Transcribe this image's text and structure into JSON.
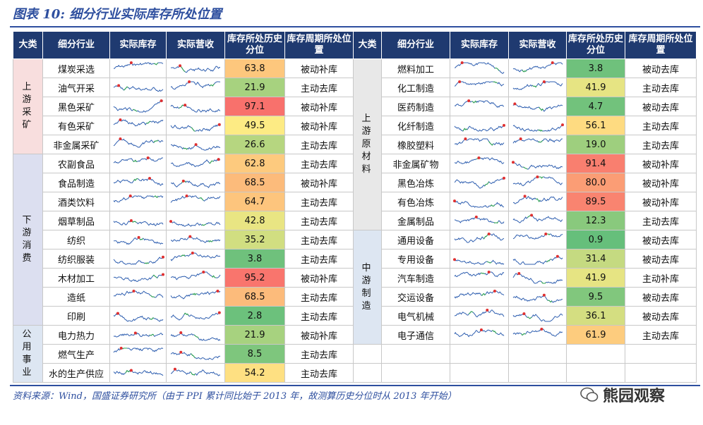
{
  "header": {
    "title": "图表 10:  细分行业实际库存所处位置"
  },
  "table": {
    "columns": [
      "大类",
      "细分行业",
      "实际库存",
      "实际营收",
      "库存所处历史分位",
      "库存周期所处位置",
      "大类",
      "细分行业",
      "实际库存",
      "实际营收",
      "库存所处历史分位",
      "库存周期所处位置"
    ],
    "left_groups": [
      {
        "name": "上游采矿",
        "rows": [
          [
            "煤炭采选",
            "63.8",
            "被动补库"
          ],
          [
            "油气开采",
            "21.9",
            "主动去库"
          ],
          [
            "黑色采矿",
            "97.1",
            "被动补库"
          ],
          [
            "有色采矿",
            "49.5",
            "被动补库"
          ],
          [
            "非金属采矿",
            "26.6",
            "主动去库"
          ]
        ]
      },
      {
        "name": "下游消费",
        "rows": [
          [
            "农副食品",
            "62.8",
            "主动去库"
          ],
          [
            "食品制造",
            "68.5",
            "被动补库"
          ],
          [
            "酒类饮料",
            "64.7",
            "主动去库"
          ],
          [
            "烟草制品",
            "42.8",
            "主动去库"
          ],
          [
            "纺织",
            "35.2",
            "主动去库"
          ],
          [
            "纺织服装",
            "3.8",
            "主动去库"
          ],
          [
            "木材加工",
            "95.2",
            "被动补库"
          ],
          [
            "造纸",
            "68.5",
            "主动去库"
          ],
          [
            "印刷",
            "2.8",
            "主动去库"
          ]
        ]
      },
      {
        "name": "公用事业",
        "rows": [
          [
            "电力热力",
            "21.9",
            "被动补库"
          ],
          [
            "燃气生产",
            "8.5",
            "主动去库"
          ],
          [
            "水的生产供应",
            "54.2",
            "主动去库"
          ]
        ]
      }
    ],
    "right_groups": [
      {
        "name": "上游原材料",
        "rows": [
          [
            "燃料加工",
            "3.8",
            "被动去库"
          ],
          [
            "化工制造",
            "41.9",
            "主动去库"
          ],
          [
            "医药制造",
            "4.7",
            "被动去库"
          ],
          [
            "化纤制造",
            "56.1",
            "主动去库"
          ],
          [
            "橡胶塑料",
            "19.0",
            "主动去库"
          ],
          [
            "非金属矿物",
            "91.4",
            "被动补库"
          ],
          [
            "黑色冶炼",
            "80.0",
            "被动补库"
          ],
          [
            "有色冶炼",
            "89.5",
            "被动补库"
          ],
          [
            "金属制品",
            "12.3",
            "主动去库"
          ]
        ]
      },
      {
        "name": "中游制造",
        "rows": [
          [
            "通用设备",
            "0.9",
            "被动去库"
          ],
          [
            "专用设备",
            "31.4",
            "被动去库"
          ],
          [
            "汽车制造",
            "41.9",
            "主动补库"
          ],
          [
            "交运设备",
            "9.5",
            "被动去库"
          ],
          [
            "电气机械",
            "36.1",
            "被动去库"
          ],
          [
            "电子通信",
            "61.9",
            "主动去库"
          ]
        ]
      }
    ]
  },
  "footer": {
    "source": "资料来源：Wind，国盛证券研究所（由于 PPI 累计同比始于 2013 年，故测算历史分位时从 2013 年开始）",
    "watermark": "熊园观察"
  }
}
